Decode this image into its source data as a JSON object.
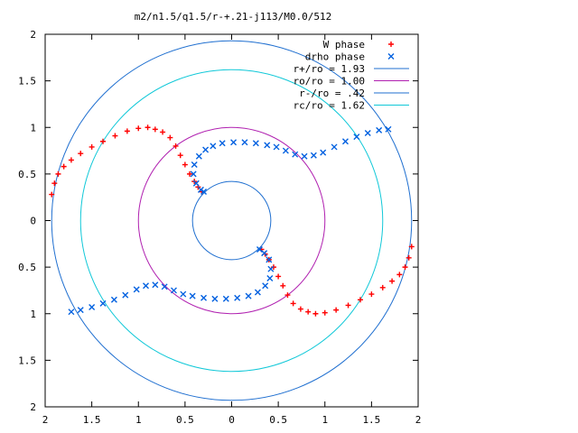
{
  "chart_data": {
    "type": "scatter",
    "title": "m2/n1.5/q1.5/r-+.21-j113/M0.0/512",
    "xlabel": "",
    "ylabel": "",
    "xlim": [
      -2,
      2
    ],
    "ylim": [
      -2,
      2
    ],
    "x_ticks": [
      {
        "value": -2,
        "label": "2"
      },
      {
        "value": -1.5,
        "label": "1.5"
      },
      {
        "value": -1,
        "label": "1"
      },
      {
        "value": -0.5,
        "label": "0.5"
      },
      {
        "value": 0,
        "label": "0"
      },
      {
        "value": 0.5,
        "label": "0.5"
      },
      {
        "value": 1,
        "label": "1"
      },
      {
        "value": 1.5,
        "label": "1.5"
      },
      {
        "value": 2,
        "label": "2"
      }
    ],
    "y_ticks": [
      {
        "value": 2,
        "label": "2"
      },
      {
        "value": 1.5,
        "label": "1.5"
      },
      {
        "value": 1,
        "label": "1"
      },
      {
        "value": 0.5,
        "label": "0.5"
      },
      {
        "value": 0,
        "label": "0"
      },
      {
        "value": -0.5,
        "label": "0.5"
      },
      {
        "value": -1,
        "label": "1"
      },
      {
        "value": -1.5,
        "label": "1.5"
      },
      {
        "value": -2,
        "label": "2"
      }
    ],
    "grid": false,
    "legend_position": "top-right",
    "series": [
      {
        "name": "W phase",
        "marker": "plus",
        "color": "#ff0000",
        "points": [
          [
            -1.93,
            0.28
          ],
          [
            -1.9,
            0.4
          ],
          [
            -1.86,
            0.5
          ],
          [
            -1.8,
            0.58
          ],
          [
            -1.72,
            0.65
          ],
          [
            -1.62,
            0.72
          ],
          [
            -1.5,
            0.79
          ],
          [
            -1.38,
            0.85
          ],
          [
            -1.25,
            0.91
          ],
          [
            -1.12,
            0.96
          ],
          [
            -1.0,
            0.99
          ],
          [
            -0.9,
            1.0
          ],
          [
            -0.82,
            0.98
          ],
          [
            -0.74,
            0.95
          ],
          [
            -0.66,
            0.89
          ],
          [
            -0.6,
            0.8
          ],
          [
            -0.55,
            0.7
          ],
          [
            -0.5,
            0.6
          ],
          [
            -0.45,
            0.5
          ],
          [
            -0.4,
            0.42
          ],
          [
            -0.36,
            0.36
          ],
          [
            -0.32,
            0.31
          ],
          [
            1.93,
            -0.28
          ],
          [
            1.9,
            -0.4
          ],
          [
            1.86,
            -0.5
          ],
          [
            1.8,
            -0.58
          ],
          [
            1.72,
            -0.65
          ],
          [
            1.62,
            -0.72
          ],
          [
            1.5,
            -0.79
          ],
          [
            1.38,
            -0.85
          ],
          [
            1.25,
            -0.91
          ],
          [
            1.12,
            -0.96
          ],
          [
            1.0,
            -0.99
          ],
          [
            0.9,
            -1.0
          ],
          [
            0.82,
            -0.98
          ],
          [
            0.74,
            -0.95
          ],
          [
            0.66,
            -0.89
          ],
          [
            0.6,
            -0.8
          ],
          [
            0.55,
            -0.7
          ],
          [
            0.5,
            -0.6
          ],
          [
            0.45,
            -0.5
          ],
          [
            0.4,
            -0.42
          ],
          [
            0.36,
            -0.36
          ],
          [
            0.32,
            -0.31
          ]
        ]
      },
      {
        "name": "drho phase",
        "marker": "cross",
        "color": "#0060e0",
        "points": [
          [
            -1.72,
            -0.98
          ],
          [
            -1.62,
            -0.96
          ],
          [
            -1.5,
            -0.93
          ],
          [
            -1.38,
            -0.89
          ],
          [
            -1.26,
            -0.85
          ],
          [
            -1.14,
            -0.8
          ],
          [
            -1.02,
            -0.74
          ],
          [
            -0.92,
            -0.7
          ],
          [
            -0.82,
            -0.69
          ],
          [
            -0.72,
            -0.71
          ],
          [
            -0.62,
            -0.75
          ],
          [
            -0.52,
            -0.79
          ],
          [
            -0.42,
            -0.81
          ],
          [
            -0.3,
            -0.83
          ],
          [
            -0.18,
            -0.84
          ],
          [
            -0.06,
            -0.84
          ],
          [
            0.06,
            -0.83
          ],
          [
            0.18,
            -0.81
          ],
          [
            0.28,
            -0.77
          ],
          [
            0.36,
            -0.7
          ],
          [
            0.41,
            -0.62
          ],
          [
            0.42,
            -0.52
          ],
          [
            0.4,
            -0.42
          ],
          [
            0.35,
            -0.35
          ],
          [
            0.3,
            -0.31
          ],
          [
            1.68,
            0.98
          ],
          [
            1.58,
            0.97
          ],
          [
            1.46,
            0.94
          ],
          [
            1.34,
            0.9
          ],
          [
            1.22,
            0.85
          ],
          [
            1.1,
            0.79
          ],
          [
            0.98,
            0.73
          ],
          [
            0.88,
            0.7
          ],
          [
            0.78,
            0.69
          ],
          [
            0.68,
            0.71
          ],
          [
            0.58,
            0.75
          ],
          [
            0.48,
            0.79
          ],
          [
            0.38,
            0.81
          ],
          [
            0.26,
            0.83
          ],
          [
            0.14,
            0.84
          ],
          [
            0.02,
            0.84
          ],
          [
            -0.1,
            0.83
          ],
          [
            -0.2,
            0.8
          ],
          [
            -0.28,
            0.76
          ],
          [
            -0.35,
            0.69
          ],
          [
            -0.4,
            0.6
          ],
          [
            -0.41,
            0.5
          ],
          [
            -0.38,
            0.4
          ],
          [
            -0.33,
            0.33
          ],
          [
            -0.3,
            0.31
          ]
        ]
      },
      {
        "name": "r+/ro = 1.93",
        "type": "circle",
        "radius": 1.93,
        "color": "#1f6fd0"
      },
      {
        "name": "ro/ro = 1.00",
        "type": "circle",
        "radius": 1.0,
        "color": "#b020b0"
      },
      {
        "name": "r-/ro = .42",
        "type": "circle",
        "radius": 0.42,
        "color": "#1f6fd0"
      },
      {
        "name": "rc/ro = 1.62",
        "type": "circle",
        "radius": 1.62,
        "color": "#10c8d8"
      }
    ]
  }
}
